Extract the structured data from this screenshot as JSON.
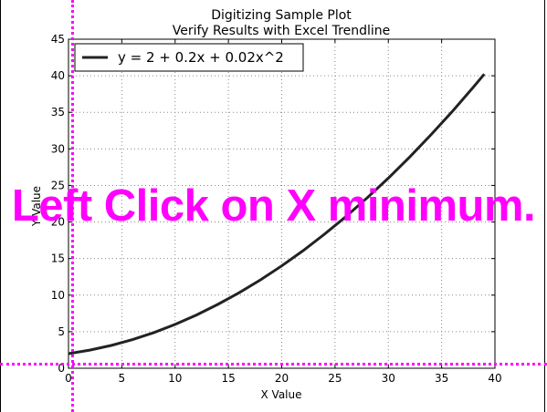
{
  "overlay": {
    "instruction": "Left Click on X minimum.",
    "color": "#ff00ff"
  },
  "chart_data": {
    "type": "line",
    "title": "Digitizing Sample Plot",
    "subtitle": "Verify Results with Excel Trendline",
    "xlabel": "X Value",
    "ylabel": "Y Value",
    "xlim": [
      0,
      40
    ],
    "ylim": [
      0,
      45
    ],
    "xticks": [
      "0",
      "5",
      "10",
      "15",
      "20",
      "25",
      "30",
      "35",
      "40"
    ],
    "yticks": [
      "0",
      "5",
      "10",
      "15",
      "20",
      "25",
      "30",
      "35",
      "40",
      "45"
    ],
    "grid": true,
    "legend": {
      "placement": "top-left",
      "entries": [
        "y = 2 + 0.2x + 0.02x^2"
      ]
    },
    "series": [
      {
        "name": "y = 2 + 0.2x + 0.02x^2",
        "color": "#222222",
        "x": [
          0,
          2,
          4,
          6,
          8,
          10,
          12,
          14,
          16,
          18,
          20,
          22,
          24,
          26,
          28,
          30,
          32,
          34,
          36,
          38,
          39
        ],
        "y": [
          2.0,
          2.48,
          3.12,
          3.92,
          4.88,
          6.0,
          7.28,
          8.72,
          10.32,
          12.08,
          14.0,
          16.08,
          18.32,
          20.72,
          23.28,
          26.0,
          28.88,
          31.92,
          35.12,
          38.48,
          40.22
        ]
      }
    ]
  }
}
